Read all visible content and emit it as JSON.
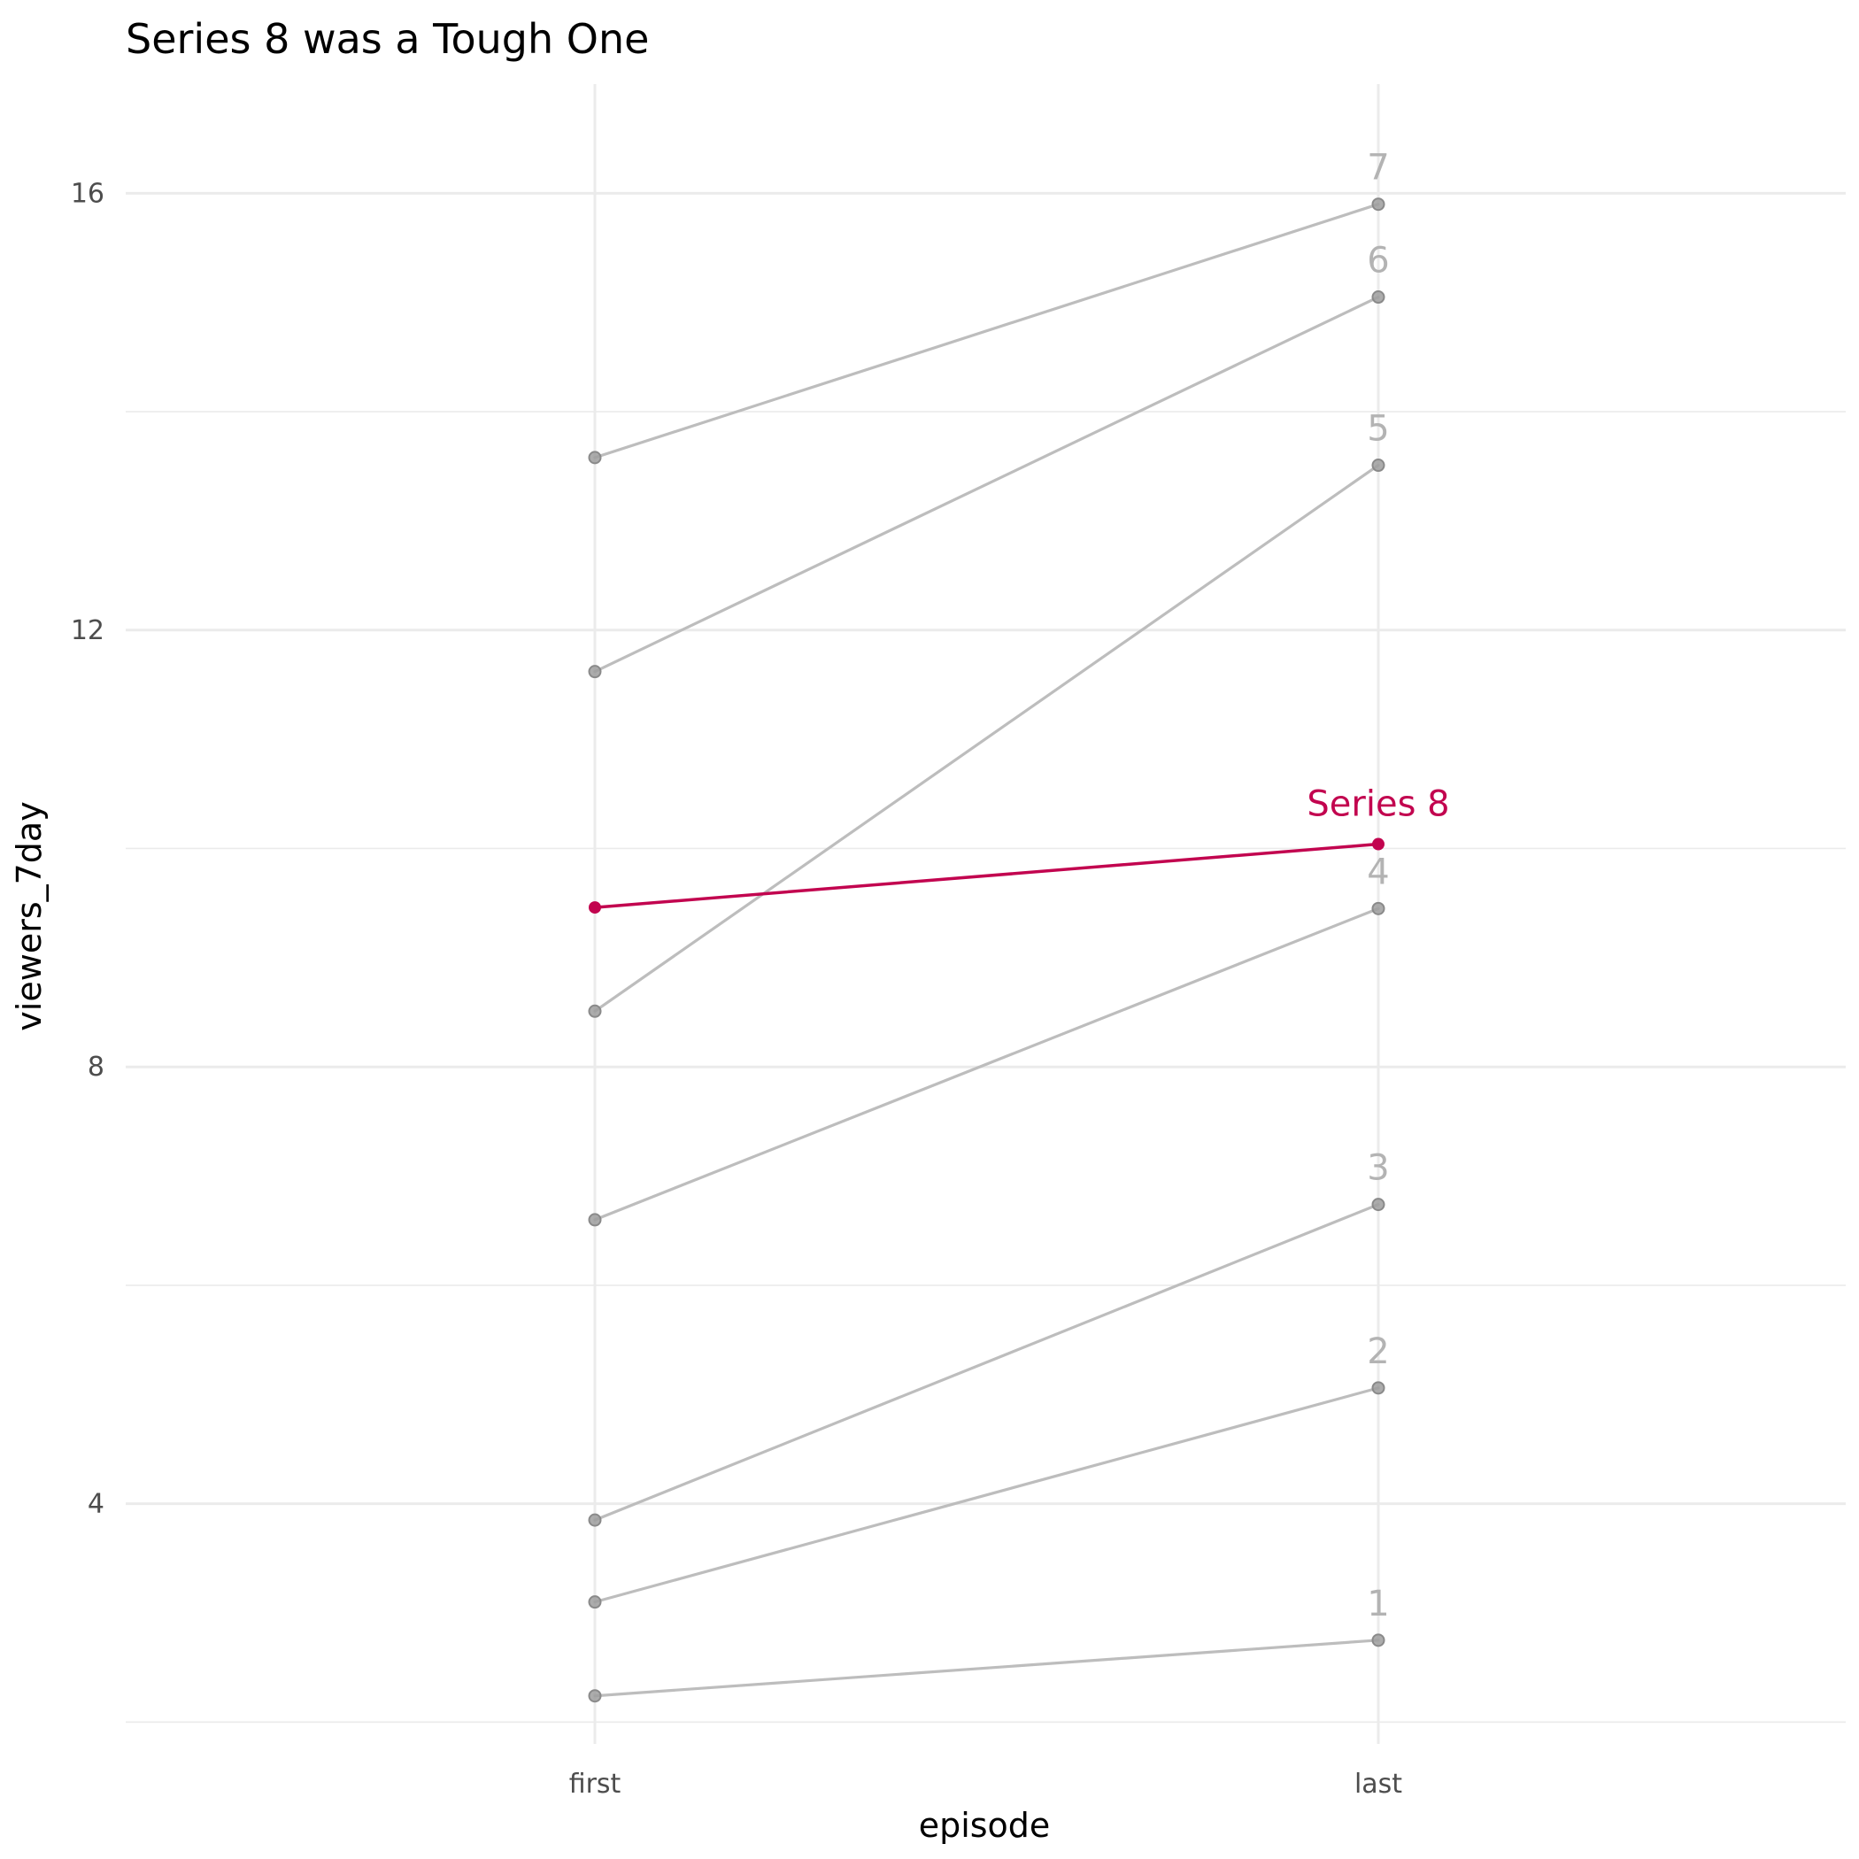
{
  "chart_data": {
    "type": "line",
    "title": "Series 8 was a Tough One",
    "xlabel": "episode",
    "ylabel": "viewers_7day",
    "categories": [
      "first",
      "last"
    ],
    "ylim": [
      1.8,
      17.0
    ],
    "yticks": [
      4,
      8,
      12,
      16
    ],
    "grid": true,
    "legend": "none",
    "colors": {
      "base": "#bdbdbd",
      "point": "#9e9e9e",
      "label": "#b3b3b3",
      "highlight": "#c2044f"
    },
    "series": [
      {
        "name": "1",
        "values": [
          2.24,
          2.75
        ],
        "highlight": false
      },
      {
        "name": "2",
        "values": [
          3.1,
          5.06
        ],
        "highlight": false
      },
      {
        "name": "3",
        "values": [
          3.85,
          6.74
        ],
        "highlight": false
      },
      {
        "name": "4",
        "values": [
          6.6,
          9.45
        ],
        "highlight": false
      },
      {
        "name": "5",
        "values": [
          8.51,
          13.51
        ],
        "highlight": false
      },
      {
        "name": "6",
        "values": [
          11.62,
          15.05
        ],
        "highlight": false
      },
      {
        "name": "7",
        "values": [
          13.58,
          15.9
        ],
        "highlight": false
      },
      {
        "name": "Series 8",
        "values": [
          9.46,
          10.04
        ],
        "highlight": true
      }
    ]
  }
}
